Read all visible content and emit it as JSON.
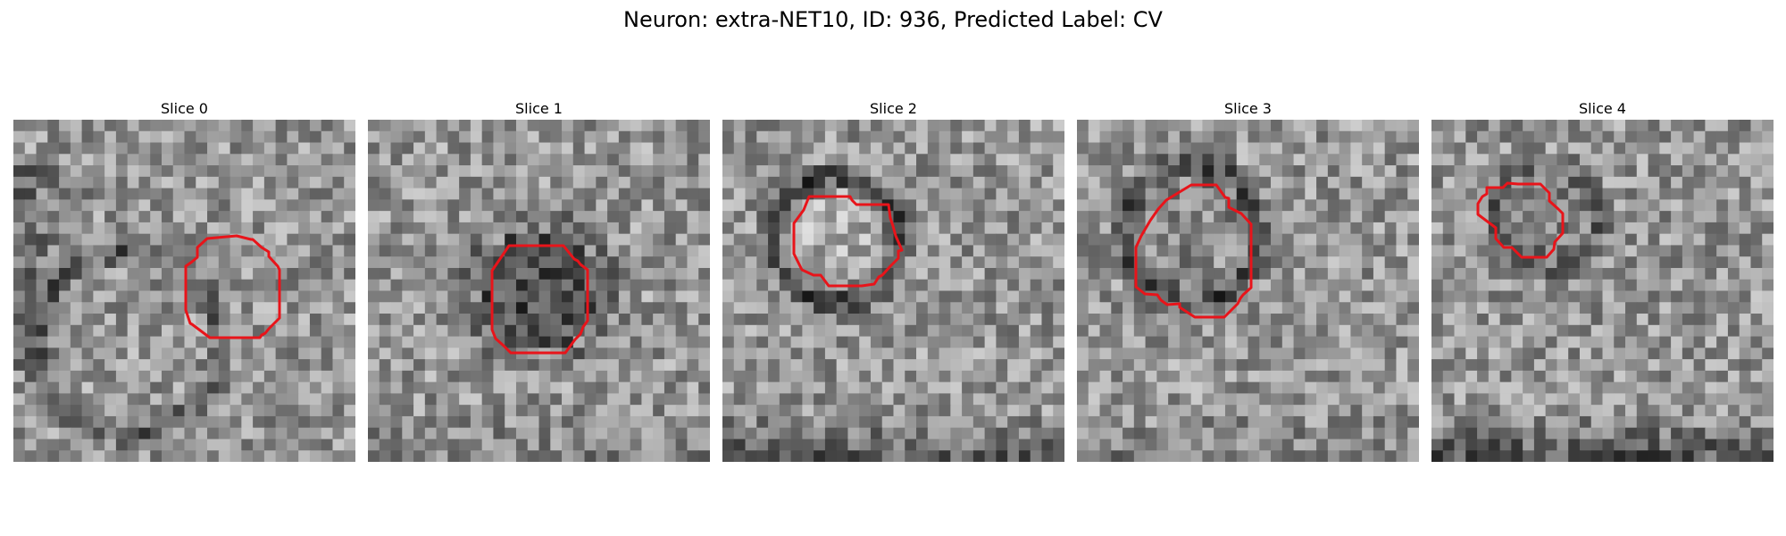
{
  "figure": {
    "title": "Neuron: extra-NET10, ID: 936, Predicted Label: CV"
  },
  "panels": [
    {
      "title": "Slice 0"
    },
    {
      "title": "Slice 1"
    },
    {
      "title": "Slice 2"
    },
    {
      "title": "Slice 3"
    },
    {
      "title": "Slice 4"
    }
  ],
  "colors": {
    "contour": "#e8141a",
    "background": "#ffffff"
  }
}
